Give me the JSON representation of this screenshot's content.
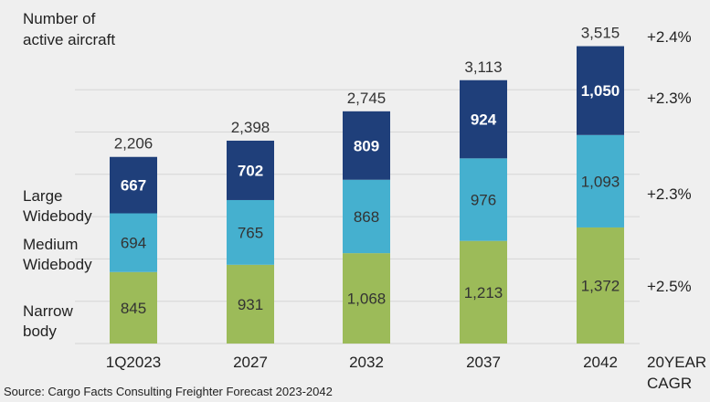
{
  "y_label": [
    "Number of",
    "active aircraft"
  ],
  "series_labels": {
    "large": [
      "Large",
      "Widebody"
    ],
    "medium": [
      "Medium",
      "Widebody"
    ],
    "narrow": [
      "Narrow",
      "body"
    ]
  },
  "cagr_header": [
    "20YEAR",
    "CAGR"
  ],
  "source": "Source: Cargo Facts Consulting Freighter Forecast 2023-2042",
  "colors": {
    "narrow": "#9cbb59",
    "medium": "#45b0cf",
    "large": "#1f3f7a",
    "grid": "#d6d6d6"
  },
  "chart_data": {
    "type": "bar",
    "stacked": true,
    "categories": [
      "1Q2023",
      "2027",
      "2032",
      "2037",
      "2042"
    ],
    "series": [
      {
        "name": "Narrow body",
        "values": [
          845,
          931,
          1068,
          1213,
          1372
        ],
        "labels": [
          "845",
          "931",
          "1,068",
          "1,213",
          "1,372"
        ]
      },
      {
        "name": "Medium Widebody",
        "values": [
          694,
          765,
          868,
          976,
          1093
        ],
        "labels": [
          "694",
          "765",
          "868",
          "976",
          "1,093"
        ]
      },
      {
        "name": "Large Widebody",
        "values": [
          667,
          702,
          809,
          924,
          1050
        ],
        "labels": [
          "667",
          "702",
          "809",
          "924",
          "1,050"
        ]
      }
    ],
    "totals": [
      2206,
      2398,
      2745,
      3113,
      3515
    ],
    "total_labels": [
      "2,206",
      "2,398",
      "2,745",
      "3,113",
      "3,515"
    ],
    "cagr": {
      "total": "+2.4%",
      "large": "+2.3%",
      "medium": "+2.3%",
      "narrow": "+2.5%"
    },
    "grid": true,
    "legend": "left"
  }
}
